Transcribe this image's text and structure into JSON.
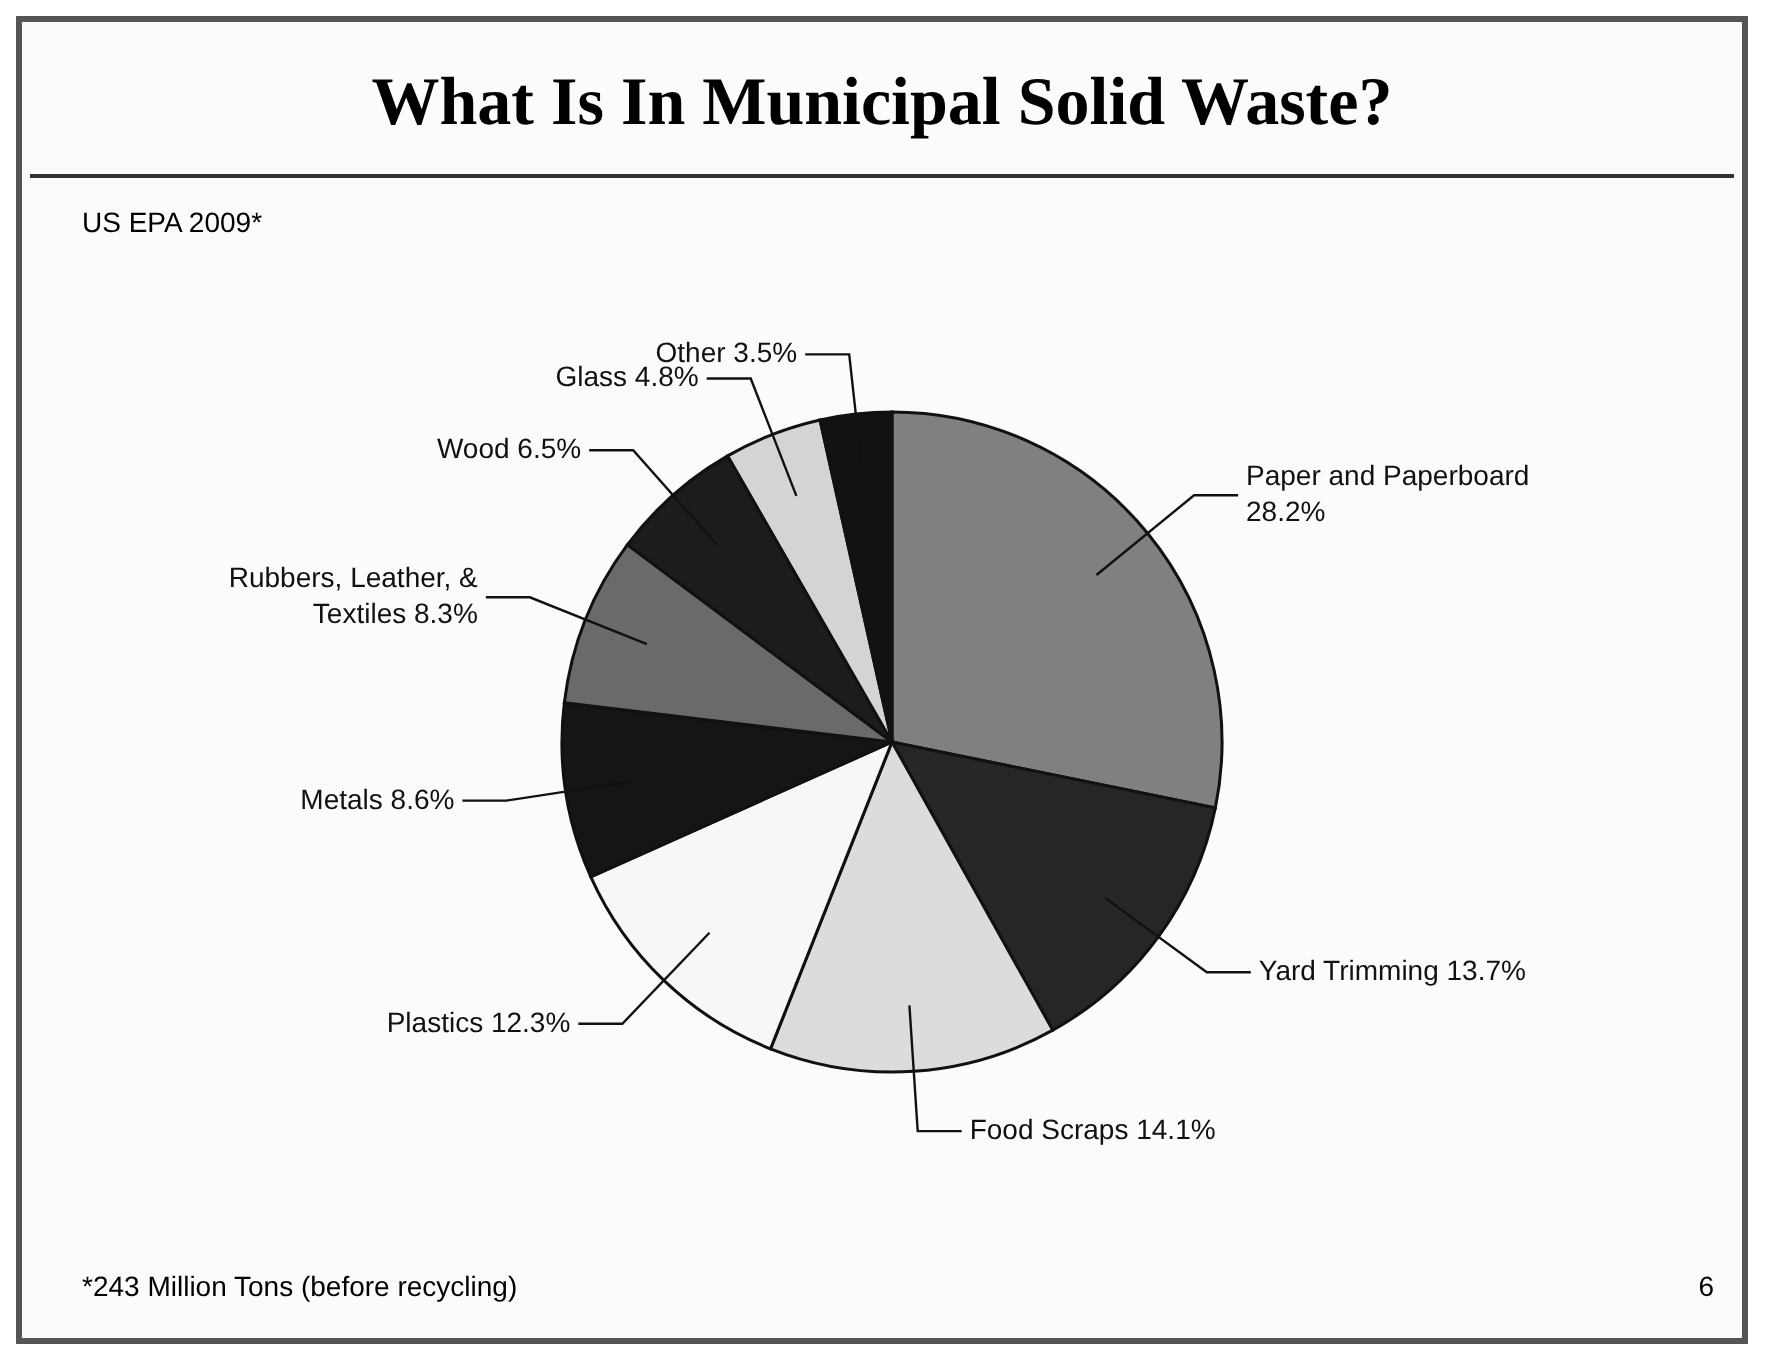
{
  "chart_data": {
    "type": "pie",
    "title": "What Is In Municipal Solid Waste?",
    "subtitle": "US EPA 2009*",
    "categories": [
      "Paper and Paperboard",
      "Yard Trimming",
      "Food Scraps",
      "Plastics",
      "Metals",
      "Rubbers, Leather, & Textiles",
      "Wood",
      "Glass",
      "Other"
    ],
    "values": [
      28.2,
      13.7,
      14.1,
      12.3,
      8.6,
      8.3,
      6.5,
      4.8,
      3.5
    ],
    "value_labels": [
      "28.2%",
      "13.7%",
      "14.1%",
      "12.3%",
      "8.6%",
      "8.3%",
      "6.5%",
      "4.8%",
      "3.5%"
    ],
    "colors": [
      "#808080",
      "#262626",
      "#dcdcdc",
      "#f7f7f7",
      "#151515",
      "#6a6a6a",
      "#1c1c1c",
      "#d4d4d4",
      "#121212"
    ],
    "annotations": [
      "*243 Million Tons (before recycling)",
      "6"
    ]
  }
}
